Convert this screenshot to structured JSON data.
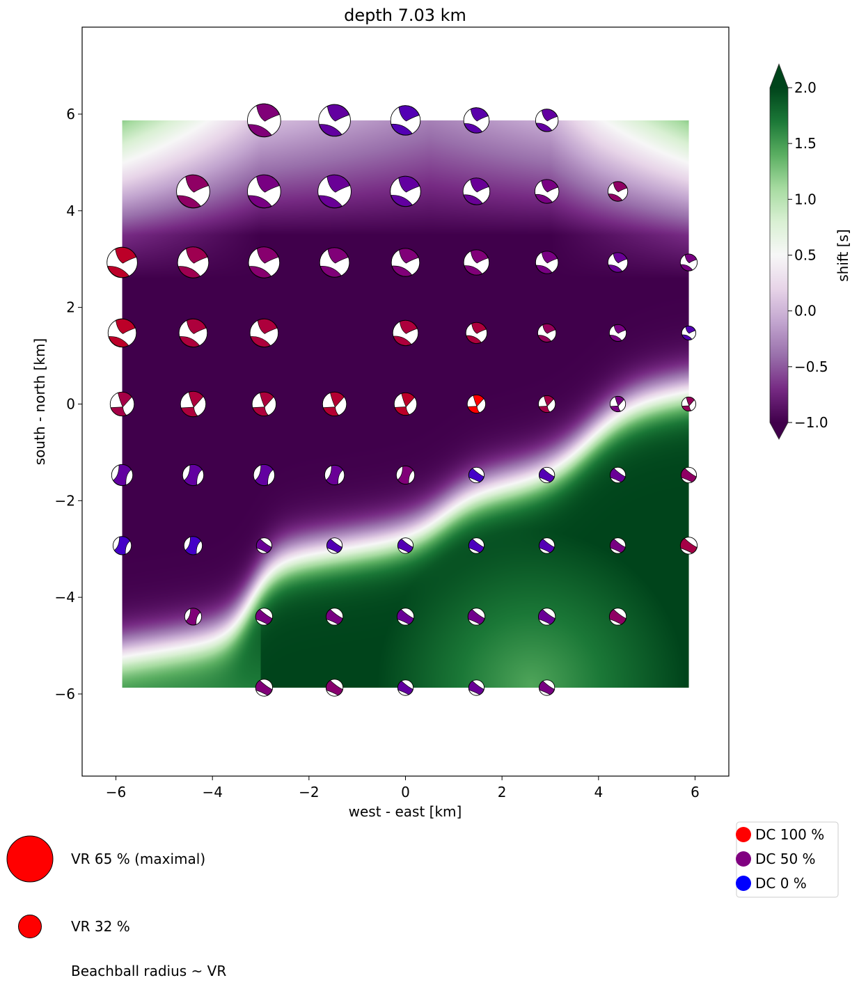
{
  "chart_data": {
    "type": "heatmap",
    "title": "depth  7.03 km",
    "xlabel": "west - east [km]",
    "ylabel": "south - north [km]",
    "xlim": [
      -6.7,
      6.7
    ],
    "ylim": [
      -7.7,
      7.8
    ],
    "xticks": [
      -6,
      -4,
      -2,
      0,
      2,
      4,
      6
    ],
    "yticks": [
      -6,
      -4,
      -2,
      0,
      2,
      4,
      6
    ],
    "xtick_labels": [
      "−6",
      "−4",
      "−2",
      "0",
      "2",
      "4",
      "6"
    ],
    "ytick_labels": [
      "−6",
      "−4",
      "−2",
      "0",
      "2",
      "4",
      "6"
    ],
    "grid": false,
    "heatmap_extent": {
      "x": [
        -5.87,
        5.87
      ],
      "y": [
        -5.87,
        5.87
      ]
    },
    "heatmap_description": "time shift field: light purple (~0 s) in the far north, dark purple (-1 s) across the center, sharp white transition (~0.5 s) along a stepped diagonal from southwest to east, dark-to-medium green (1.5-2 s) in the southeast",
    "colorbar": {
      "label": "shift [s]",
      "min": -1.0,
      "max": 2.0,
      "ticks": [
        -1.0,
        -0.5,
        0.0,
        0.5,
        1.0,
        1.5,
        2.0
      ],
      "tick_labels": [
        "−1.0",
        "−0.5",
        "0.0",
        "0.5",
        "1.0",
        "1.5",
        "2.0"
      ],
      "extend": "both",
      "colormap": "PRGn",
      "colors": [
        "#40004b",
        "#762a83",
        "#9970ab",
        "#c2a5cf",
        "#e7d4e8",
        "#f7f7f7",
        "#d9f0d3",
        "#a6dba0",
        "#5aae61",
        "#1b7837",
        "#00441b"
      ]
    },
    "grid_coords": [
      -5.87,
      -4.4,
      -2.93,
      -1.47,
      0.0,
      1.47,
      2.93,
      4.4,
      5.87
    ],
    "beachballs": [
      {
        "x": -2.93,
        "y": 5.87,
        "vr": 47,
        "dc": 45
      },
      {
        "x": -1.47,
        "y": 5.87,
        "vr": 45,
        "dc": 25
      },
      {
        "x": 0.0,
        "y": 5.87,
        "vr": 42,
        "dc": 15
      },
      {
        "x": 1.47,
        "y": 5.87,
        "vr": 36,
        "dc": 20
      },
      {
        "x": 2.93,
        "y": 5.87,
        "vr": 32,
        "dc": 25
      },
      {
        "x": -4.4,
        "y": 4.4,
        "vr": 47,
        "dc": 55
      },
      {
        "x": -2.93,
        "y": 4.4,
        "vr": 47,
        "dc": 40
      },
      {
        "x": -1.47,
        "y": 4.4,
        "vr": 47,
        "dc": 30
      },
      {
        "x": 0.0,
        "y": 4.4,
        "vr": 43,
        "dc": 25
      },
      {
        "x": 1.47,
        "y": 4.4,
        "vr": 38,
        "dc": 30
      },
      {
        "x": 2.93,
        "y": 4.4,
        "vr": 34,
        "dc": 40
      },
      {
        "x": 4.4,
        "y": 4.4,
        "vr": 28,
        "dc": 55
      },
      {
        "x": -5.87,
        "y": 2.93,
        "vr": 43,
        "dc": 85
      },
      {
        "x": -4.4,
        "y": 2.93,
        "vr": 44,
        "dc": 65
      },
      {
        "x": -2.93,
        "y": 2.93,
        "vr": 44,
        "dc": 50
      },
      {
        "x": -1.47,
        "y": 2.93,
        "vr": 42,
        "dc": 45
      },
      {
        "x": 0.0,
        "y": 2.93,
        "vr": 40,
        "dc": 45
      },
      {
        "x": 1.47,
        "y": 2.93,
        "vr": 36,
        "dc": 45
      },
      {
        "x": 2.93,
        "y": 2.93,
        "vr": 32,
        "dc": 40
      },
      {
        "x": 4.4,
        "y": 2.93,
        "vr": 28,
        "dc": 30
      },
      {
        "x": 5.87,
        "y": 2.93,
        "vr": 24,
        "dc": 40
      },
      {
        "x": -5.87,
        "y": 1.47,
        "vr": 40,
        "dc": 85
      },
      {
        "x": -4.4,
        "y": 1.47,
        "vr": 40,
        "dc": 75
      },
      {
        "x": -2.93,
        "y": 1.47,
        "vr": 40,
        "dc": 75
      },
      {
        "x": 0.0,
        "y": 1.47,
        "vr": 36,
        "dc": 75
      },
      {
        "x": 1.47,
        "y": 1.47,
        "vr": 30,
        "dc": 75
      },
      {
        "x": 2.93,
        "y": 1.47,
        "vr": 26,
        "dc": 60
      },
      {
        "x": 4.4,
        "y": 1.47,
        "vr": 24,
        "dc": 40
      },
      {
        "x": 5.87,
        "y": 1.47,
        "vr": 20,
        "dc": 15
      },
      {
        "x": -5.87,
        "y": 0.0,
        "vr": 34,
        "dc": 70
      },
      {
        "x": -4.4,
        "y": 0.0,
        "vr": 36,
        "dc": 75
      },
      {
        "x": -2.93,
        "y": 0.0,
        "vr": 34,
        "dc": 75
      },
      {
        "x": -1.47,
        "y": 0.0,
        "vr": 34,
        "dc": 80
      },
      {
        "x": 0.0,
        "y": 0.0,
        "vr": 32,
        "dc": 85
      },
      {
        "x": 1.47,
        "y": 0.0,
        "vr": 26,
        "dc": 100
      },
      {
        "x": 2.93,
        "y": 0.0,
        "vr": 24,
        "dc": 70
      },
      {
        "x": 4.4,
        "y": 0.0,
        "vr": 22,
        "dc": 40
      },
      {
        "x": 5.87,
        "y": 0.0,
        "vr": 20,
        "dc": 60
      },
      {
        "x": -5.87,
        "y": -1.47,
        "vr": 30,
        "dc": 25
      },
      {
        "x": -4.4,
        "y": -1.47,
        "vr": 30,
        "dc": 25
      },
      {
        "x": -2.93,
        "y": -1.47,
        "vr": 30,
        "dc": 25
      },
      {
        "x": -1.47,
        "y": -1.47,
        "vr": 28,
        "dc": 30
      },
      {
        "x": 0.0,
        "y": -1.47,
        "vr": 26,
        "dc": 45
      },
      {
        "x": 1.47,
        "y": -1.47,
        "vr": 22,
        "dc": 5
      },
      {
        "x": 2.93,
        "y": -1.47,
        "vr": 22,
        "dc": 15
      },
      {
        "x": 4.4,
        "y": -1.47,
        "vr": 22,
        "dc": 30
      },
      {
        "x": 5.87,
        "y": -1.47,
        "vr": 22,
        "dc": 55
      },
      {
        "x": -5.87,
        "y": -2.93,
        "vr": 26,
        "dc": 5
      },
      {
        "x": -4.4,
        "y": -2.93,
        "vr": 26,
        "dc": 5
      },
      {
        "x": -2.93,
        "y": -2.93,
        "vr": 22,
        "dc": 30
      },
      {
        "x": -1.47,
        "y": -2.93,
        "vr": 22,
        "dc": 15
      },
      {
        "x": 0.0,
        "y": -2.93,
        "vr": 22,
        "dc": 15
      },
      {
        "x": 1.47,
        "y": -2.93,
        "vr": 22,
        "dc": 10
      },
      {
        "x": 2.93,
        "y": -2.93,
        "vr": 22,
        "dc": 15
      },
      {
        "x": 4.4,
        "y": -2.93,
        "vr": 22,
        "dc": 40
      },
      {
        "x": 5.87,
        "y": -2.93,
        "vr": 24,
        "dc": 70
      },
      {
        "x": -4.4,
        "y": -4.4,
        "vr": 24,
        "dc": 45
      },
      {
        "x": -2.93,
        "y": -4.4,
        "vr": 24,
        "dc": 40
      },
      {
        "x": -1.47,
        "y": -4.4,
        "vr": 24,
        "dc": 40
      },
      {
        "x": 0.0,
        "y": -4.4,
        "vr": 24,
        "dc": 30
      },
      {
        "x": 1.47,
        "y": -4.4,
        "vr": 24,
        "dc": 35
      },
      {
        "x": 2.93,
        "y": -4.4,
        "vr": 24,
        "dc": 30
      },
      {
        "x": 4.4,
        "y": -4.4,
        "vr": 24,
        "dc": 55
      },
      {
        "x": -2.93,
        "y": -5.87,
        "vr": 24,
        "dc": 45
      },
      {
        "x": -1.47,
        "y": -5.87,
        "vr": 24,
        "dc": 50
      },
      {
        "x": 0.0,
        "y": -5.87,
        "vr": 22,
        "dc": 25
      },
      {
        "x": 1.47,
        "y": -5.87,
        "vr": 22,
        "dc": 30
      },
      {
        "x": 2.93,
        "y": -5.87,
        "vr": 22,
        "dc": 40
      }
    ],
    "size_legend": [
      {
        "vr": 65,
        "label": "VR 65 % (maximal)"
      },
      {
        "vr": 32,
        "label": "VR 32 %"
      }
    ],
    "size_legend_note": "Beachball radius ~ VR",
    "dc_legend": [
      {
        "label": "DC 100 %",
        "color": "#ff0000"
      },
      {
        "label": "DC 50 %",
        "color": "#800080"
      },
      {
        "label": "DC 0 %",
        "color": "#0000ff"
      }
    ]
  }
}
